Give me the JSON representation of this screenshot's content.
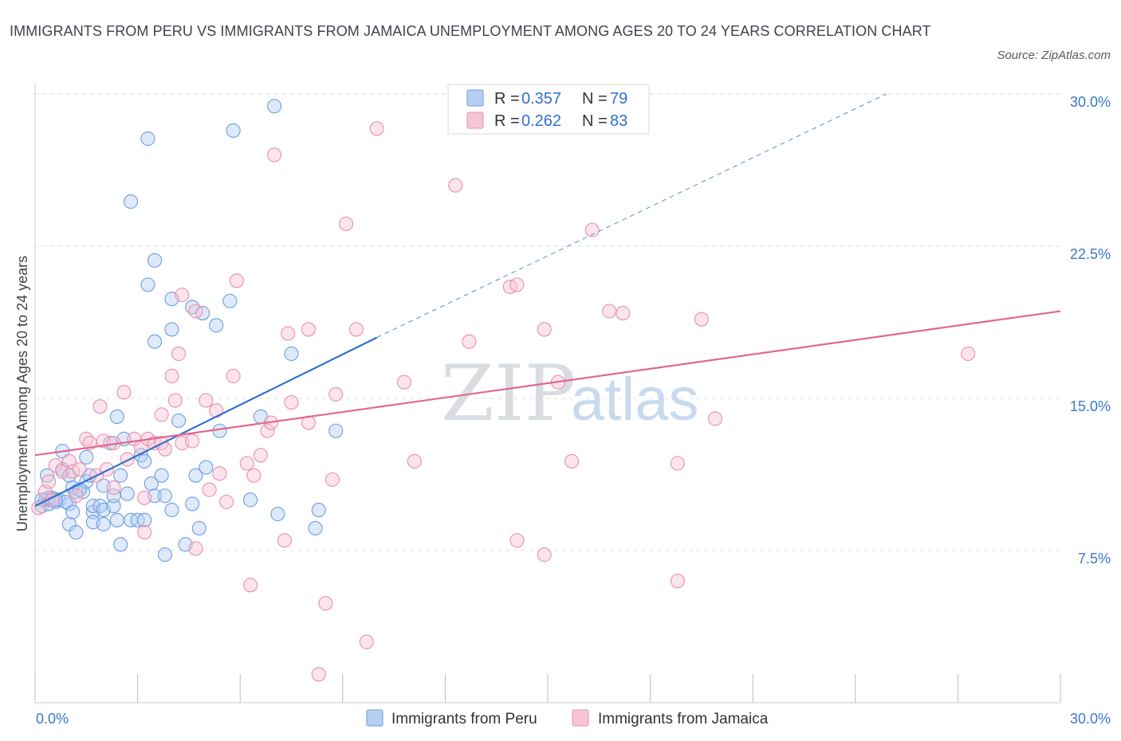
{
  "title": "IMMIGRANTS FROM PERU VS IMMIGRANTS FROM JAMAICA UNEMPLOYMENT AMONG AGES 20 TO 24 YEARS CORRELATION CHART",
  "source": "Source: ZipAtlas.com",
  "watermark": {
    "zip": "ZIP",
    "atlas": "atlas"
  },
  "colors": {
    "peru": "#6a9fe0",
    "peru_fill": "#b7cff3",
    "peru_line": "#2e6fcf",
    "jamaica": "#e890ad",
    "jamaica_fill": "#f7c4d4",
    "jamaica_line": "#e0688f",
    "axis_text": "#3a78c9",
    "grid": "#dcdfe3"
  },
  "legend_top": {
    "rows": [
      {
        "r_label": "R = ",
        "r_value": "0.357",
        "n_label": "N = ",
        "n_value": "79"
      },
      {
        "r_label": "R = ",
        "r_value": "0.262",
        "n_label": "N = ",
        "n_value": "83"
      }
    ]
  },
  "legend_bottom": {
    "peru": "Immigrants from Peru",
    "jamaica": "Immigrants from Jamaica"
  },
  "chart_data": {
    "type": "scatter",
    "xlabel": "",
    "ylabel": "Unemployment Among Ages 20 to 24 years",
    "xlim": [
      0,
      30
    ],
    "ylim": [
      0,
      30
    ],
    "x_tick_labels": [
      "0.0%",
      "30.0%"
    ],
    "y_ticks": [
      7.5,
      15.0,
      22.5,
      30.0
    ],
    "y_tick_labels": [
      "7.5%",
      "15.0%",
      "22.5%",
      "30.0%"
    ],
    "grid": true,
    "series": [
      {
        "name": "Immigrants from Peru",
        "R": 0.357,
        "N": 79,
        "trend": {
          "x0": 0.0,
          "y0": 9.7,
          "x1": 10.0,
          "y1": 18.0,
          "dash_to_x": 24.9,
          "dash_to_y": 30.0
        },
        "points": [
          [
            0.2,
            9.7
          ],
          [
            0.3,
            10.0
          ],
          [
            0.4,
            9.8
          ],
          [
            0.5,
            10.1
          ],
          [
            0.6,
            9.9
          ],
          [
            0.7,
            10.0
          ],
          [
            0.35,
            11.2
          ],
          [
            0.8,
            11.5
          ],
          [
            0.8,
            12.4
          ],
          [
            1.0,
            11.2
          ],
          [
            1.1,
            10.6
          ],
          [
            1.2,
            10.4
          ],
          [
            1.0,
            9.8
          ],
          [
            1.0,
            8.8
          ],
          [
            1.2,
            8.4
          ],
          [
            1.1,
            9.4
          ],
          [
            1.4,
            10.4
          ],
          [
            1.5,
            10.9
          ],
          [
            1.6,
            11.2
          ],
          [
            1.5,
            12.1
          ],
          [
            1.7,
            9.4
          ],
          [
            1.7,
            9.7
          ],
          [
            1.7,
            8.9
          ],
          [
            1.9,
            9.7
          ],
          [
            2.0,
            10.7
          ],
          [
            2.0,
            9.5
          ],
          [
            2.0,
            8.8
          ],
          [
            2.2,
            12.8
          ],
          [
            2.3,
            9.7
          ],
          [
            2.3,
            10.2
          ],
          [
            2.4,
            9.0
          ],
          [
            2.4,
            14.1
          ],
          [
            2.5,
            11.2
          ],
          [
            2.5,
            7.8
          ],
          [
            2.6,
            13.0
          ],
          [
            2.7,
            10.3
          ],
          [
            2.8,
            9.0
          ],
          [
            3.0,
            9.0
          ],
          [
            3.1,
            12.2
          ],
          [
            3.2,
            9.0
          ],
          [
            3.2,
            11.9
          ],
          [
            3.4,
            10.8
          ],
          [
            3.5,
            10.2
          ],
          [
            3.7,
            11.2
          ],
          [
            3.8,
            10.2
          ],
          [
            3.8,
            7.3
          ],
          [
            4.0,
            9.5
          ],
          [
            4.2,
            13.9
          ],
          [
            4.4,
            7.8
          ],
          [
            4.6,
            9.8
          ],
          [
            4.7,
            11.2
          ],
          [
            4.8,
            8.6
          ],
          [
            5.0,
            11.6
          ],
          [
            5.4,
            13.4
          ],
          [
            6.3,
            10.0
          ],
          [
            6.6,
            14.1
          ],
          [
            7.1,
            9.3
          ],
          [
            7.5,
            17.2
          ],
          [
            8.2,
            8.6
          ],
          [
            8.3,
            9.5
          ],
          [
            8.8,
            13.4
          ],
          [
            3.3,
            27.8
          ],
          [
            5.8,
            28.2
          ],
          [
            7.0,
            29.4
          ],
          [
            2.8,
            24.7
          ],
          [
            3.5,
            21.8
          ],
          [
            3.3,
            20.6
          ],
          [
            4.0,
            19.9
          ],
          [
            4.6,
            19.5
          ],
          [
            4.0,
            18.4
          ],
          [
            5.3,
            18.6
          ],
          [
            5.7,
            19.8
          ],
          [
            3.5,
            17.8
          ],
          [
            4.9,
            19.2
          ],
          [
            0.4,
            10.1
          ],
          [
            0.9,
            9.9
          ],
          [
            1.3,
            10.5
          ],
          [
            0.6,
            10.0
          ],
          [
            0.2,
            10.0
          ]
        ]
      },
      {
        "name": "Immigrants from Jamaica",
        "R": 0.262,
        "N": 83,
        "trend": {
          "x0": 0.0,
          "y0": 12.2,
          "x1": 30.0,
          "y1": 19.3
        },
        "points": [
          [
            0.1,
            9.6
          ],
          [
            0.3,
            10.4
          ],
          [
            0.4,
            10.9
          ],
          [
            0.6,
            11.7
          ],
          [
            0.8,
            11.4
          ],
          [
            1.0,
            11.9
          ],
          [
            1.1,
            11.4
          ],
          [
            1.2,
            10.2
          ],
          [
            1.5,
            13.0
          ],
          [
            1.6,
            12.8
          ],
          [
            1.8,
            11.2
          ],
          [
            1.9,
            14.6
          ],
          [
            2.0,
            12.9
          ],
          [
            2.1,
            11.5
          ],
          [
            2.3,
            10.6
          ],
          [
            2.3,
            12.8
          ],
          [
            2.6,
            15.3
          ],
          [
            2.9,
            13.0
          ],
          [
            2.7,
            12.0
          ],
          [
            3.1,
            12.6
          ],
          [
            3.3,
            13.0
          ],
          [
            3.2,
            10.1
          ],
          [
            3.5,
            12.8
          ],
          [
            3.2,
            8.4
          ],
          [
            3.7,
            12.8
          ],
          [
            3.7,
            14.2
          ],
          [
            3.8,
            12.5
          ],
          [
            4.0,
            16.1
          ],
          [
            4.1,
            14.9
          ],
          [
            4.2,
            17.2
          ],
          [
            4.3,
            20.1
          ],
          [
            4.3,
            12.8
          ],
          [
            4.6,
            12.9
          ],
          [
            4.7,
            19.3
          ],
          [
            4.7,
            7.6
          ],
          [
            5.0,
            14.9
          ],
          [
            5.1,
            10.5
          ],
          [
            5.3,
            14.4
          ],
          [
            5.4,
            11.3
          ],
          [
            5.6,
            9.9
          ],
          [
            5.8,
            16.1
          ],
          [
            5.9,
            20.8
          ],
          [
            6.2,
            11.8
          ],
          [
            6.3,
            5.8
          ],
          [
            6.4,
            11.2
          ],
          [
            6.6,
            12.2
          ],
          [
            6.8,
            13.4
          ],
          [
            6.9,
            13.8
          ],
          [
            7.0,
            27.0
          ],
          [
            7.3,
            8.0
          ],
          [
            7.4,
            18.2
          ],
          [
            7.5,
            14.8
          ],
          [
            8.0,
            18.4
          ],
          [
            8.0,
            13.8
          ],
          [
            8.3,
            1.4
          ],
          [
            8.5,
            4.9
          ],
          [
            8.7,
            11.0
          ],
          [
            8.8,
            15.2
          ],
          [
            9.1,
            23.6
          ],
          [
            9.4,
            18.4
          ],
          [
            9.7,
            3.0
          ],
          [
            10.0,
            28.3
          ],
          [
            10.8,
            15.8
          ],
          [
            11.1,
            11.9
          ],
          [
            12.3,
            25.5
          ],
          [
            12.7,
            17.8
          ],
          [
            13.9,
            20.5
          ],
          [
            14.1,
            8.0
          ],
          [
            14.9,
            18.4
          ],
          [
            14.9,
            7.3
          ],
          [
            15.3,
            15.8
          ],
          [
            15.7,
            11.9
          ],
          [
            16.3,
            23.3
          ],
          [
            16.8,
            19.3
          ],
          [
            17.2,
            19.2
          ],
          [
            18.8,
            6.0
          ],
          [
            18.8,
            11.8
          ],
          [
            19.5,
            18.9
          ],
          [
            19.9,
            14.0
          ],
          [
            27.3,
            17.2
          ],
          [
            14.1,
            20.6
          ],
          [
            1.3,
            11.5
          ],
          [
            0.5,
            10.0
          ]
        ]
      }
    ]
  }
}
